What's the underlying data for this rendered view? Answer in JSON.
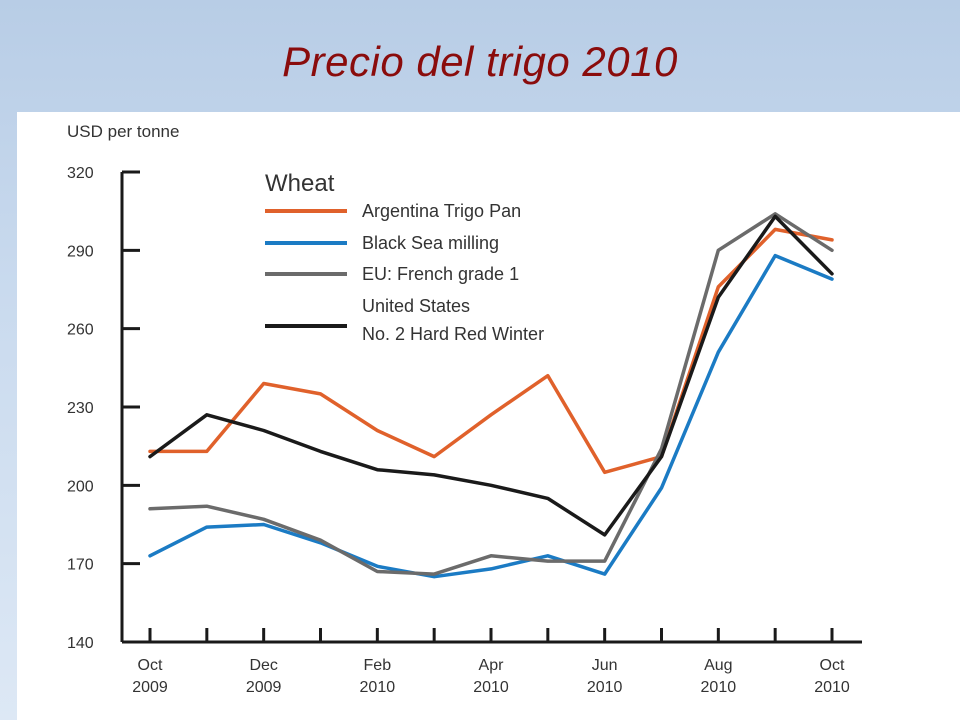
{
  "slide": {
    "title": "Precio del trigo 2010"
  },
  "chart_data": {
    "type": "line",
    "title": "",
    "ylabel": "USD per tonne",
    "xlabel": "",
    "ylim": [
      140,
      320
    ],
    "yticks": [
      "320",
      "290",
      "260",
      "230",
      "200",
      "170",
      "140"
    ],
    "ytick_values": [
      320,
      290,
      260,
      230,
      200,
      170,
      140
    ],
    "x": [
      "Oct 2009",
      "Nov 2009",
      "Dec 2009",
      "Jan 2010",
      "Feb 2010",
      "Mar 2010",
      "Apr 2010",
      "May 2010",
      "Jun 2010",
      "Jul 2010",
      "Aug 2010",
      "Sep 2010",
      "Oct 2010"
    ],
    "xtick_labels": [
      {
        "index": 0,
        "line1": "Oct",
        "line2": "2009"
      },
      {
        "index": 2,
        "line1": "Dec",
        "line2": "2009"
      },
      {
        "index": 4,
        "line1": "Feb",
        "line2": "2010"
      },
      {
        "index": 6,
        "line1": "Apr",
        "line2": "2010"
      },
      {
        "index": 8,
        "line1": "Jun",
        "line2": "2010"
      },
      {
        "index": 10,
        "line1": "Aug",
        "line2": "2010"
      },
      {
        "index": 12,
        "line1": "Oct",
        "line2": "2010"
      }
    ],
    "grid": false,
    "legend": {
      "title": "Wheat",
      "placement": "top-left"
    },
    "series": [
      {
        "name": "Argentina Trigo Pan",
        "label_lines": [
          "Argentina Trigo Pan"
        ],
        "color": "#e0612b",
        "values": [
          213,
          213,
          239,
          235,
          221,
          211,
          227,
          242,
          205,
          211,
          276,
          298,
          294
        ]
      },
      {
        "name": "Black Sea milling",
        "label_lines": [
          "Black Sea milling"
        ],
        "color": "#1b7bc4",
        "values": [
          173,
          184,
          185,
          178,
          169,
          165,
          168,
          173,
          166,
          199,
          251,
          288,
          279
        ]
      },
      {
        "name": "EU: French grade 1",
        "label_lines": [
          "EU: French grade 1"
        ],
        "color": "#6b6b6b",
        "values": [
          191,
          192,
          187,
          179,
          167,
          166,
          173,
          171,
          171,
          214,
          290,
          304,
          290
        ]
      },
      {
        "name": "United States No. 2 Hard Red Winter",
        "label_lines": [
          "United States",
          "No. 2 Hard Red Winter"
        ],
        "color": "#1a1a1a",
        "values": [
          211,
          227,
          221,
          213,
          206,
          204,
          200,
          195,
          181,
          211,
          272,
          303,
          281
        ]
      }
    ]
  }
}
